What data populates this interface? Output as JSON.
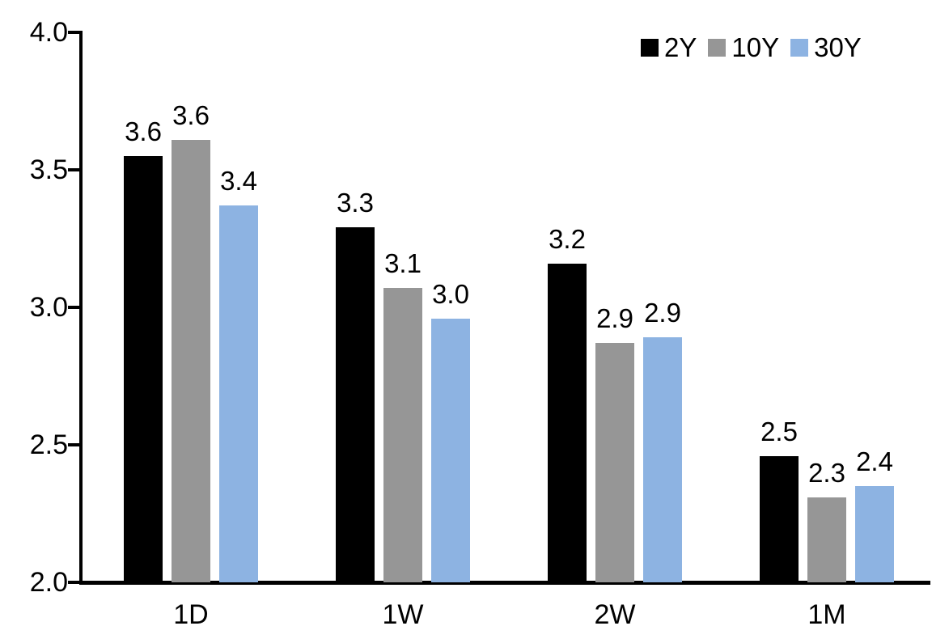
{
  "chart_data": {
    "type": "bar",
    "title": "",
    "xlabel": "",
    "ylabel": "",
    "categories": [
      "1D",
      "1W",
      "2W",
      "1M"
    ],
    "series": [
      {
        "name": "2Y",
        "color": "#000000",
        "values": [
          3.55,
          3.29,
          3.16,
          2.46
        ],
        "labels": [
          "3.6",
          "3.3",
          "3.2",
          "2.5"
        ]
      },
      {
        "name": "10Y",
        "color": "#969696",
        "values": [
          3.61,
          3.07,
          2.87,
          2.31
        ],
        "labels": [
          "3.6",
          "3.1",
          "2.9",
          "2.3"
        ]
      },
      {
        "name": "30Y",
        "color": "#8DB3E2",
        "values": [
          3.37,
          2.96,
          2.89,
          2.35
        ],
        "labels": [
          "3.4",
          "3.0",
          "2.9",
          "2.4"
        ]
      }
    ],
    "ylim": [
      2.0,
      4.0
    ],
    "yticks": [
      4.0,
      3.5,
      3.0,
      2.5,
      2.0
    ],
    "ytick_labels": [
      "4.0",
      "3.5",
      "3.0",
      "2.5",
      "2.0"
    ],
    "grid": false,
    "legend_position": "top-right",
    "axis_color": "#000000",
    "background": "#FFFFFF"
  }
}
